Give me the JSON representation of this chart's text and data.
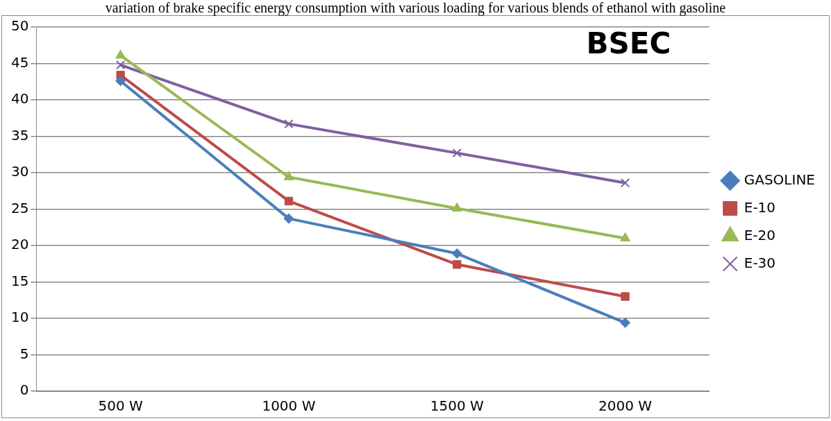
{
  "chart_data": {
    "type": "line",
    "title": "BSEC",
    "annotations": [
      "variation of brake specific energy consumption with various loading for various blends of ethanol with gasoline"
    ],
    "categories": [
      "500 W",
      "1000 W",
      "1500 W",
      "2000 W"
    ],
    "series": [
      {
        "name": "GASOLINE",
        "color": "#4a7ebb",
        "marker": "diamond",
        "values": [
          42.6,
          23.7,
          18.9,
          9.4
        ]
      },
      {
        "name": "E-10",
        "color": "#be4b48",
        "marker": "square",
        "values": [
          43.4,
          26.1,
          17.4,
          13.0
        ]
      },
      {
        "name": "E-20",
        "color": "#98b954",
        "marker": "triangle",
        "values": [
          46.1,
          29.4,
          25.1,
          21.0
        ]
      },
      {
        "name": "E-30",
        "color": "#7d60a0",
        "marker": "cross",
        "values": [
          44.8,
          36.7,
          32.7,
          28.6
        ]
      }
    ],
    "ylim": [
      0,
      50
    ],
    "yticks": [
      0,
      5,
      10,
      15,
      20,
      25,
      30,
      35,
      40,
      45,
      50
    ],
    "grid": "y",
    "legend": "right"
  }
}
